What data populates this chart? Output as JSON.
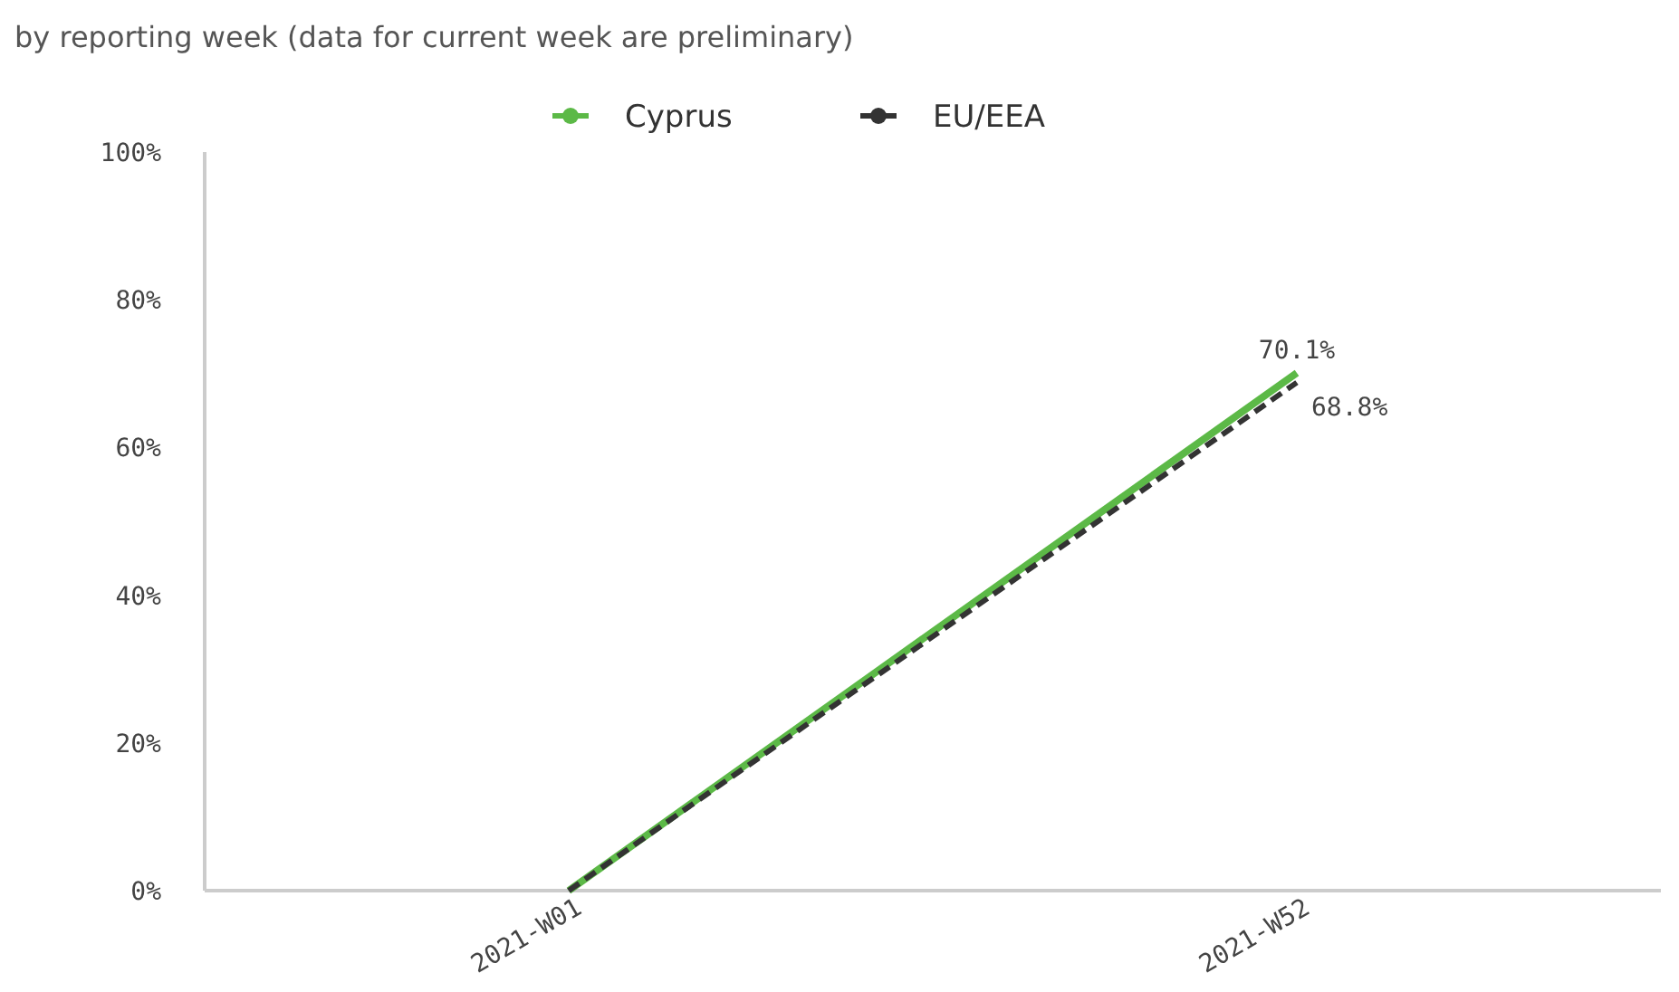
{
  "chart_data": {
    "type": "line",
    "subtitle": "by reporting week (data for current week are preliminary)",
    "categories": [
      "2021-W01",
      "2021-W52"
    ],
    "ylim": [
      0,
      100
    ],
    "yticks": [
      {
        "value": 0,
        "label": "0%"
      },
      {
        "value": 20,
        "label": "20%"
      },
      {
        "value": 40,
        "label": "40%"
      },
      {
        "value": 60,
        "label": "60%"
      },
      {
        "value": 80,
        "label": "80%"
      },
      {
        "value": 100,
        "label": "100%"
      }
    ],
    "grid": false,
    "legend": "top",
    "series": [
      {
        "name": "Cyprus",
        "color": "#5cb947",
        "values": [
          0,
          70.1
        ],
        "line_style": "solid",
        "value_labels": [
          null,
          "70.1%"
        ]
      },
      {
        "name": "EU/EEA",
        "color": "#333333",
        "values": [
          0,
          68.8
        ],
        "line_style": "dashed",
        "value_labels": [
          null,
          "68.8%"
        ]
      }
    ]
  }
}
